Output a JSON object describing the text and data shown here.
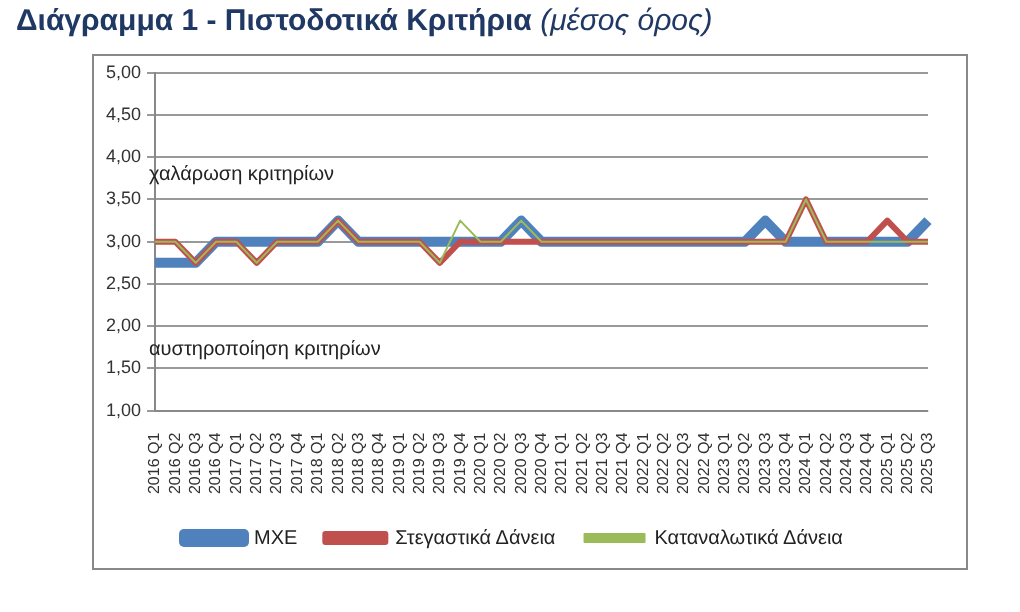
{
  "chart_data": {
    "type": "line",
    "title": "Διάγραμμα 1 - Πιστοδοτικά Κριτήρια",
    "subtitle": "(μέσος όρος)",
    "categories": [
      "2016 Q1",
      "2016 Q2",
      "2016 Q3",
      "2016 Q4",
      "2017 Q1",
      "2017 Q2",
      "2017 Q3",
      "2017 Q4",
      "2018 Q1",
      "2018 Q2",
      "2018 Q3",
      "2018 Q4",
      "2019 Q1",
      "2019 Q2",
      "2019 Q3",
      "2019 Q4",
      "2020 Q1",
      "2020 Q2",
      "2020 Q3",
      "2020 Q4",
      "2021 Q1",
      "2021 Q2",
      "2021 Q3",
      "2021 Q4",
      "2022 Q1",
      "2022 Q2",
      "2022 Q3",
      "2022 Q4",
      "2023 Q1",
      "2023 Q2",
      "2023 Q3",
      "2023 Q4",
      "2024 Q1",
      "2024 Q2",
      "2024 Q3",
      "2024 Q4",
      "2025 Q1",
      "2025 Q2",
      "2025 Q3"
    ],
    "series": [
      {
        "name": "ΜΧΕ",
        "color": "#4f81bd",
        "values": [
          2.75,
          2.75,
          2.75,
          3,
          3,
          3,
          3,
          3,
          3,
          3.25,
          3,
          3,
          3,
          3,
          3,
          3,
          3,
          3,
          3.25,
          3,
          3,
          3,
          3,
          3,
          3,
          3,
          3,
          3,
          3,
          3,
          3.25,
          3,
          3,
          3,
          3,
          3,
          3,
          3,
          3.25
        ]
      },
      {
        "name": "Στεγαστικά Δάνεια",
        "color": "#c0504d",
        "values": [
          3,
          3,
          2.75,
          3,
          3,
          2.75,
          3,
          3,
          3,
          3.25,
          3,
          3,
          3,
          3,
          2.75,
          3,
          3,
          3,
          3,
          3,
          3,
          3,
          3,
          3,
          3,
          3,
          3,
          3,
          3,
          3,
          3,
          3,
          3.5,
          3,
          3,
          3,
          3.25,
          3,
          3
        ]
      },
      {
        "name": "Καταναλωτικά Δάνεια",
        "color": "#9bbb59",
        "values": [
          3,
          3,
          2.75,
          3,
          3,
          2.75,
          3,
          3,
          3,
          3.25,
          3,
          3,
          3,
          3,
          2.75,
          3.25,
          3,
          3,
          3.25,
          3,
          3,
          3,
          3,
          3,
          3,
          3,
          3,
          3,
          3,
          3,
          3,
          3,
          3.5,
          3,
          3,
          3,
          3,
          3,
          3
        ]
      }
    ],
    "ylim": [
      1,
      5
    ],
    "yticks": [
      {
        "value": 1,
        "label": "1,00"
      },
      {
        "value": 1.5,
        "label": "1,50"
      },
      {
        "value": 2,
        "label": "2,00"
      },
      {
        "value": 2.5,
        "label": "2,50"
      },
      {
        "value": 3,
        "label": "3,00"
      },
      {
        "value": 3.5,
        "label": "3,50"
      },
      {
        "value": 4,
        "label": "4,00"
      },
      {
        "value": 4.5,
        "label": "4,50"
      },
      {
        "value": 5,
        "label": "5,00"
      }
    ],
    "grid": "y",
    "legend": "bottom",
    "marker": "none",
    "line_style": "solid",
    "annotations": [
      "χαλάρωση κριτηρίων",
      "αυστηροποίηση κριτηρίων"
    ]
  }
}
